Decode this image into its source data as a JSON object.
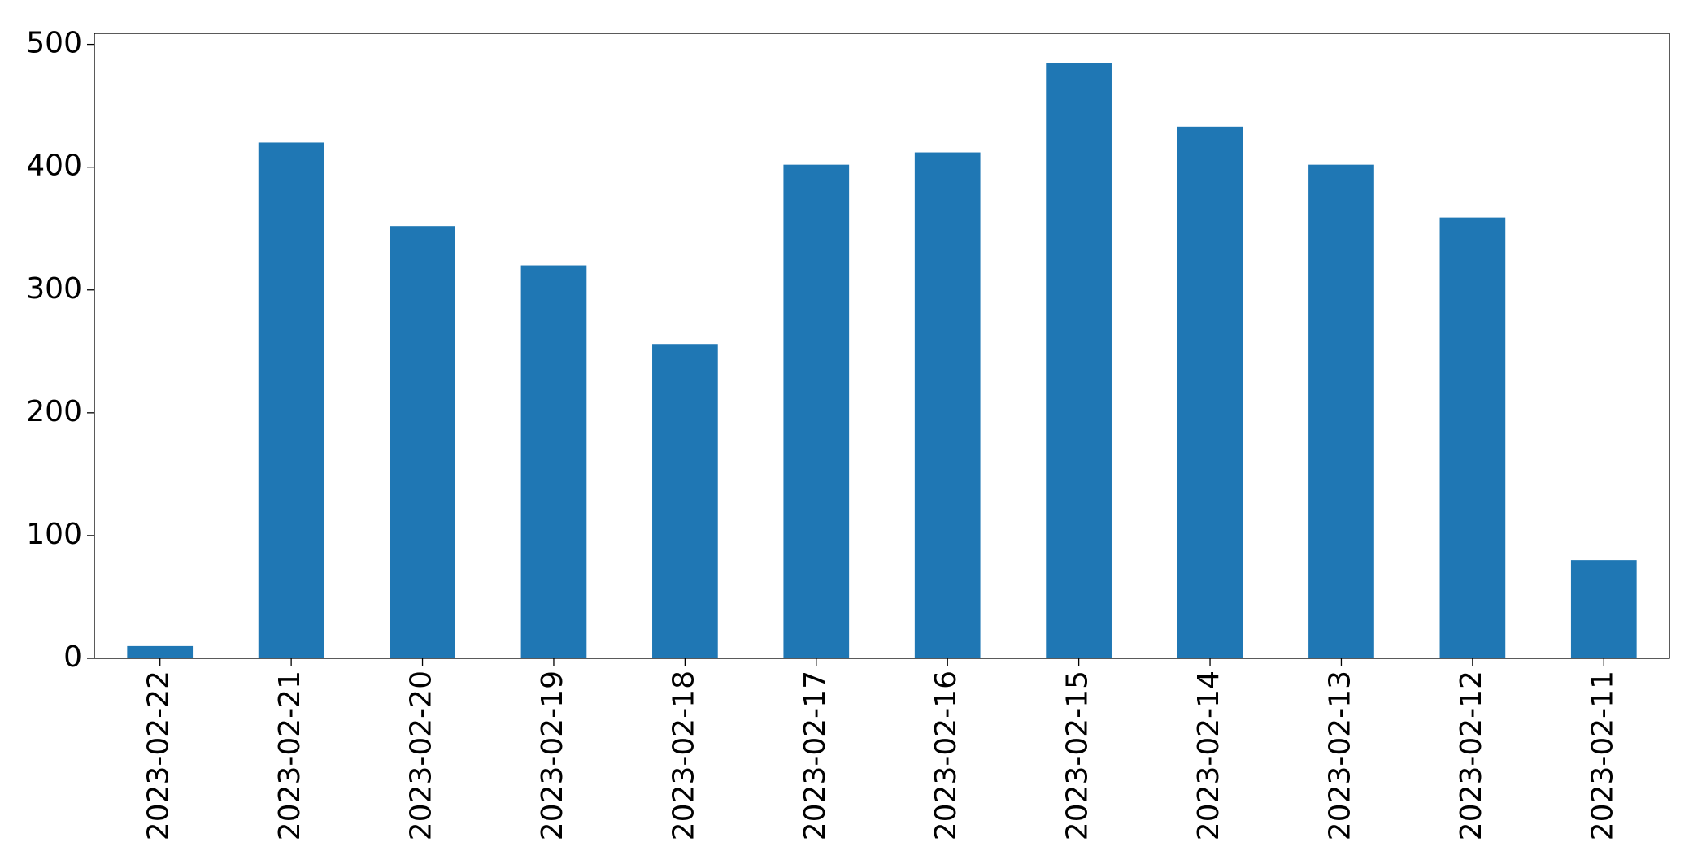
{
  "chart_data": {
    "type": "bar",
    "categories": [
      "2023-02-22",
      "2023-02-21",
      "2023-02-20",
      "2023-02-19",
      "2023-02-18",
      "2023-02-17",
      "2023-02-16",
      "2023-02-15",
      "2023-02-14",
      "2023-02-13",
      "2023-02-12",
      "2023-02-11"
    ],
    "values": [
      10,
      420,
      352,
      320,
      256,
      402,
      412,
      485,
      433,
      402,
      359,
      80
    ],
    "color": "#1f77b4",
    "ylim": [
      0,
      509
    ],
    "yticks": [
      0,
      100,
      200,
      300,
      400,
      500
    ],
    "grid": false
  }
}
